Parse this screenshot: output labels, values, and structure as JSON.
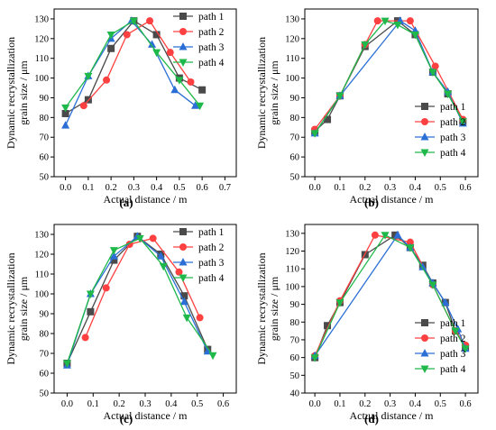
{
  "series_colors": [
    "#4a4a4a",
    "#ff4040",
    "#2b6fd6",
    "#1fb84a"
  ],
  "marker_shapes": [
    "square",
    "circle",
    "triangle-up",
    "triangle-down"
  ],
  "chart_data": [
    {
      "panel_label": "(a)",
      "type": "line",
      "xlabel": "Actual distance / m",
      "ylabel_lines": [
        "Dynamic recrystallization",
        "grain size / μm"
      ],
      "xlim": [
        -0.05,
        0.75
      ],
      "ylim": [
        50,
        135
      ],
      "xticks": [
        "0.0",
        "0.1",
        "0.2",
        "0.3",
        "0.4",
        "0.5",
        "0.6",
        "0.7"
      ],
      "yticks": [
        "50",
        "60",
        "70",
        "80",
        "90",
        "100",
        "110",
        "120",
        "130"
      ],
      "legend": "top-right",
      "series": [
        {
          "name": "path 1",
          "marker": "square",
          "points": [
            [
              0.0,
              82
            ],
            [
              0.1,
              89
            ],
            [
              0.2,
              115
            ],
            [
              0.3,
              129
            ],
            [
              0.4,
              122
            ],
            [
              0.5,
              100
            ],
            [
              0.6,
              94
            ]
          ]
        },
        {
          "name": "path 2",
          "marker": "circle",
          "points": [
            [
              0.08,
              86
            ],
            [
              0.18,
              99
            ],
            [
              0.27,
              122
            ],
            [
              0.37,
              129
            ],
            [
              0.46,
              113
            ],
            [
              0.55,
              98
            ]
          ]
        },
        {
          "name": "path 3",
          "marker": "triangle-up",
          "points": [
            [
              0.0,
              76
            ],
            [
              0.1,
              101
            ],
            [
              0.2,
              120
            ],
            [
              0.29,
              129
            ],
            [
              0.38,
              117
            ],
            [
              0.48,
              94
            ],
            [
              0.57,
              86
            ]
          ]
        },
        {
          "name": "path 4",
          "marker": "triangle-down",
          "points": [
            [
              0.0,
              85
            ],
            [
              0.1,
              101
            ],
            [
              0.2,
              122
            ],
            [
              0.3,
              129
            ],
            [
              0.4,
              113
            ],
            [
              0.5,
              99
            ],
            [
              0.59,
              86
            ]
          ]
        }
      ]
    },
    {
      "panel_label": "(b)",
      "type": "line",
      "xlabel": "Actual distance / m",
      "ylabel_lines": [
        "Dynamic recrystallization",
        "grain size / μm"
      ],
      "xlim": [
        -0.04,
        0.65
      ],
      "ylim": [
        50,
        135
      ],
      "xticks": [
        "0.0",
        "0.1",
        "0.2",
        "0.3",
        "0.4",
        "0.5",
        "0.6"
      ],
      "yticks": [
        "50",
        "60",
        "70",
        "80",
        "90",
        "100",
        "110",
        "120",
        "130"
      ],
      "legend": "bottom-right",
      "series": [
        {
          "name": "path 1",
          "marker": "square",
          "points": [
            [
              0.0,
              73
            ],
            [
              0.05,
              79
            ],
            [
              0.1,
              91
            ],
            [
              0.2,
              116
            ],
            [
              0.33,
              129
            ],
            [
              0.4,
              122
            ],
            [
              0.47,
              103
            ],
            [
              0.53,
              92
            ],
            [
              0.59,
              78
            ]
          ]
        },
        {
          "name": "path 2",
          "marker": "circle",
          "points": [
            [
              0.0,
              74
            ],
            [
              0.1,
              91
            ],
            [
              0.2,
              117
            ],
            [
              0.25,
              129
            ],
            [
              0.38,
              129
            ],
            [
              0.48,
              106
            ],
            [
              0.59,
              79
            ]
          ]
        },
        {
          "name": "path 3",
          "marker": "triangle-up",
          "points": [
            [
              0.0,
              72
            ],
            [
              0.1,
              91
            ],
            [
              0.34,
              129
            ],
            [
              0.4,
              124
            ],
            [
              0.47,
              103
            ],
            [
              0.53,
              93
            ],
            [
              0.59,
              77
            ]
          ]
        },
        {
          "name": "path 4",
          "marker": "triangle-down",
          "points": [
            [
              0.0,
              72
            ],
            [
              0.1,
              91
            ],
            [
              0.2,
              117
            ],
            [
              0.28,
              129
            ],
            [
              0.33,
              127
            ],
            [
              0.4,
              122
            ],
            [
              0.47,
              103
            ],
            [
              0.53,
              92
            ],
            [
              0.59,
              78
            ]
          ]
        }
      ]
    },
    {
      "panel_label": "(c)",
      "type": "line",
      "xlabel": "Actual distance / m",
      "ylabel_lines": [
        "Dynamic recrystallization",
        "grain size / μm"
      ],
      "xlim": [
        -0.05,
        0.65
      ],
      "ylim": [
        50,
        135
      ],
      "xticks": [
        "0.0",
        "0.1",
        "0.2",
        "0.3",
        "0.4",
        "0.5",
        "0.6"
      ],
      "yticks": [
        "50",
        "60",
        "70",
        "80",
        "90",
        "100",
        "110",
        "120",
        "130"
      ],
      "legend": "top-right",
      "series": [
        {
          "name": "path 1",
          "marker": "square",
          "points": [
            [
              0.0,
              65
            ],
            [
              0.09,
              91
            ],
            [
              0.18,
              117
            ],
            [
              0.27,
              129
            ],
            [
              0.36,
              120
            ],
            [
              0.45,
              99
            ],
            [
              0.54,
              72
            ]
          ]
        },
        {
          "name": "path 2",
          "marker": "circle",
          "points": [
            [
              0.07,
              78
            ],
            [
              0.15,
              103
            ],
            [
              0.24,
              125
            ],
            [
              0.33,
              128
            ],
            [
              0.43,
              111
            ],
            [
              0.51,
              88
            ]
          ]
        },
        {
          "name": "path 3",
          "marker": "triangle-up",
          "points": [
            [
              0.0,
              64
            ],
            [
              0.09,
              100
            ],
            [
              0.18,
              119
            ],
            [
              0.27,
              129
            ],
            [
              0.36,
              119
            ],
            [
              0.45,
              96
            ],
            [
              0.54,
              71
            ]
          ]
        },
        {
          "name": "path 4",
          "marker": "triangle-down",
          "points": [
            [
              0.0,
              65
            ],
            [
              0.09,
              100
            ],
            [
              0.18,
              122
            ],
            [
              0.28,
              128
            ],
            [
              0.37,
              114
            ],
            [
              0.46,
              88
            ],
            [
              0.56,
              69
            ]
          ]
        }
      ]
    },
    {
      "panel_label": "(d)",
      "type": "line",
      "xlabel": "Actual distance / m",
      "ylabel_lines": [
        "Dynamic recrystallization",
        "grain size / μm"
      ],
      "xlim": [
        -0.04,
        0.65
      ],
      "ylim": [
        40,
        135
      ],
      "xticks": [
        "0.0",
        "0.1",
        "0.2",
        "0.3",
        "0.4",
        "0.5",
        "0.6"
      ],
      "yticks": [
        "40",
        "50",
        "60",
        "70",
        "80",
        "90",
        "100",
        "110",
        "120",
        "130"
      ],
      "legend": "bottom-right",
      "series": [
        {
          "name": "path 1",
          "marker": "square",
          "points": [
            [
              0.0,
              60
            ],
            [
              0.05,
              78
            ],
            [
              0.1,
              91
            ],
            [
              0.2,
              118
            ],
            [
              0.32,
              129
            ],
            [
              0.38,
              122
            ],
            [
              0.43,
              112
            ],
            [
              0.47,
              102
            ],
            [
              0.52,
              91
            ],
            [
              0.56,
              75
            ],
            [
              0.6,
              66
            ]
          ]
        },
        {
          "name": "path 2",
          "marker": "circle",
          "points": [
            [
              0.0,
              61
            ],
            [
              0.1,
              92
            ],
            [
              0.24,
              129
            ],
            [
              0.38,
              125
            ],
            [
              0.47,
              101
            ],
            [
              0.56,
              75
            ],
            [
              0.6,
              67
            ]
          ]
        },
        {
          "name": "path 3",
          "marker": "triangle-up",
          "points": [
            [
              0.0,
              61
            ],
            [
              0.33,
              129
            ],
            [
              0.38,
              122
            ],
            [
              0.43,
              111
            ],
            [
              0.47,
              102
            ],
            [
              0.52,
              91
            ],
            [
              0.57,
              76
            ],
            [
              0.6,
              65
            ]
          ]
        },
        {
          "name": "path 4",
          "marker": "triangle-down",
          "points": [
            [
              0.0,
              60
            ],
            [
              0.1,
              91
            ],
            [
              0.28,
              129
            ],
            [
              0.38,
              122
            ],
            [
              0.47,
              101
            ],
            [
              0.56,
              75
            ],
            [
              0.6,
              65
            ]
          ]
        }
      ]
    }
  ]
}
